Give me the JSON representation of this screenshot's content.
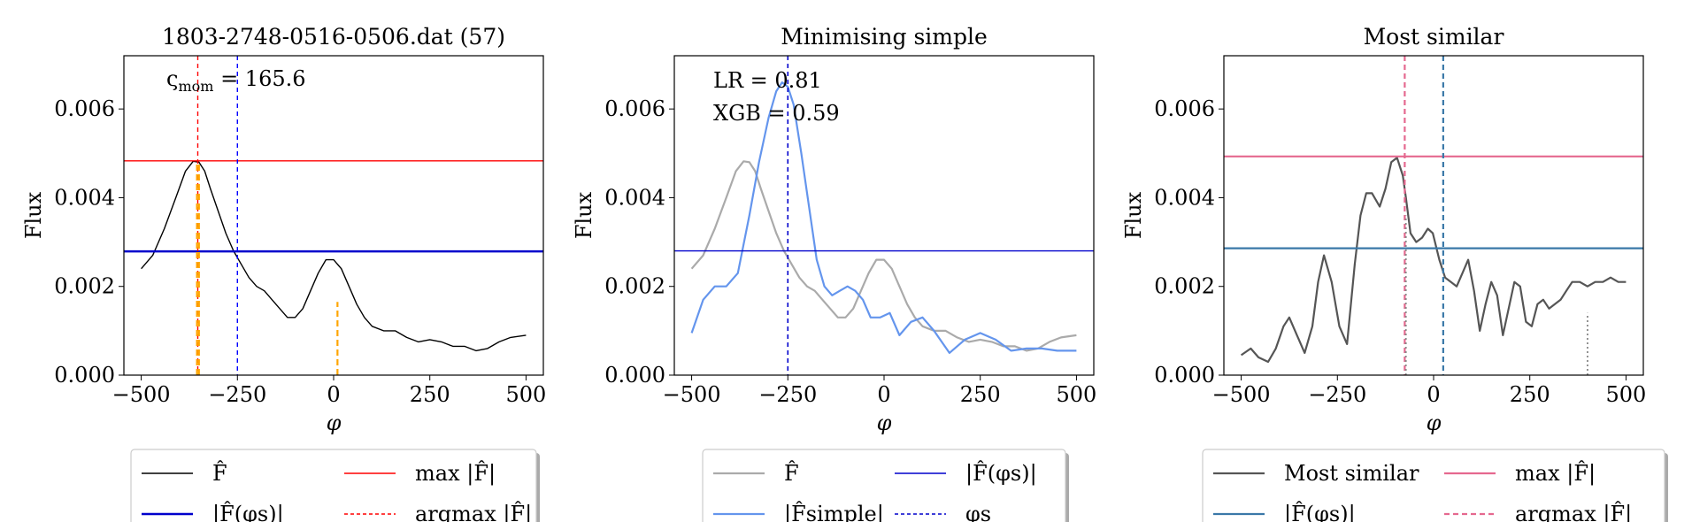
{
  "chart_data": [
    {
      "type": "line",
      "title": "1803-2748-0516-0506.dat (57)",
      "xlabel": "φ",
      "ylabel": "Flux",
      "xlim": [
        -545,
        545
      ],
      "ylim": [
        0,
        0.0072
      ],
      "xticks": [
        -500,
        -250,
        0,
        250,
        500
      ],
      "xtick_labels": [
        "−500",
        "−250",
        "0",
        "250",
        "500"
      ],
      "yticks": [
        0,
        0.002,
        0.004,
        0.006
      ],
      "ytick_labels": [
        "0.000",
        "0.002",
        "0.004",
        "0.006"
      ],
      "grid": false,
      "annotation": "ς",
      "annotation_sub": "mom",
      "annotation_value": " = 165.6",
      "series": [
        {
          "name": "F̂",
          "kind": "line",
          "color": "#000000",
          "width": 1.4,
          "x": [
            -500,
            -470,
            -440,
            -410,
            -385,
            -365,
            -350,
            -335,
            -320,
            -300,
            -280,
            -260,
            -240,
            -220,
            -200,
            -180,
            -160,
            -140,
            -120,
            -100,
            -80,
            -60,
            -40,
            -20,
            0,
            20,
            40,
            60,
            80,
            100,
            130,
            160,
            190,
            220,
            250,
            280,
            310,
            340,
            370,
            400,
            430,
            460,
            500
          ],
          "y": [
            0.0024,
            0.0027,
            0.0033,
            0.004,
            0.0046,
            0.00482,
            0.0048,
            0.0046,
            0.0042,
            0.0037,
            0.0032,
            0.0028,
            0.0025,
            0.0022,
            0.002,
            0.0019,
            0.0017,
            0.0015,
            0.0013,
            0.0013,
            0.0015,
            0.0019,
            0.0023,
            0.0026,
            0.0026,
            0.0024,
            0.002,
            0.0016,
            0.0013,
            0.0011,
            0.001,
            0.001,
            0.00085,
            0.00075,
            0.0008,
            0.00075,
            0.00065,
            0.00065,
            0.00055,
            0.0006,
            0.00075,
            0.00085,
            0.0009
          ]
        },
        {
          "name": "max |F̂|",
          "kind": "hline",
          "color": "#ff0000",
          "width": 1.4,
          "value": 0.00483
        },
        {
          "name": "|F̂(φs)|",
          "kind": "hline",
          "color": "#0000cc",
          "width": 2.4,
          "value": 0.00279
        },
        {
          "name": "argmax |F̂|",
          "kind": "vline",
          "color": "#ff0000",
          "width": 1.4,
          "dash": "5,4",
          "value": -353
        },
        {
          "name": "φs",
          "kind": "vline",
          "color": "#0000ff",
          "width": 1.4,
          "dash": "5,4",
          "value": -250
        },
        {
          "name": "",
          "kind": "stem",
          "color": "#ffa500",
          "width": 2.2,
          "dash": "7,4",
          "x": [
            -355,
            -350,
            10
          ],
          "y": [
            0.0048,
            0.0048,
            0.00165
          ]
        }
      ],
      "legend": {
        "position": "below",
        "items": [
          {
            "text": "F̂",
            "color": "#000000",
            "dash": "",
            "width": 1.4
          },
          {
            "text": "max |F̂|",
            "color": "#ff0000",
            "dash": "",
            "width": 1.4
          },
          {
            "text": "|F̂(φs)|",
            "color": "#0000cc",
            "dash": "",
            "width": 2.4
          },
          {
            "text": "argmax |F̂|",
            "color": "#ff0000",
            "dash": "4,3",
            "width": 1.4
          }
        ]
      }
    },
    {
      "type": "line",
      "title": "Minimising simple",
      "xlabel": "φ",
      "ylabel": "Flux",
      "xlim": [
        -545,
        545
      ],
      "ylim": [
        0,
        0.0072
      ],
      "xticks": [
        -500,
        -250,
        0,
        250,
        500
      ],
      "xtick_labels": [
        "−500",
        "−250",
        "0",
        "250",
        "500"
      ],
      "yticks": [
        0,
        0.002,
        0.004,
        0.006
      ],
      "ytick_labels": [
        "0.000",
        "0.002",
        "0.004",
        "0.006"
      ],
      "grid": false,
      "annotation_lines": [
        "LR = 0.81",
        "XGB = 0.59"
      ],
      "series": [
        {
          "name": "F̂",
          "kind": "line",
          "color": "#aaaaaa",
          "width": 2.2,
          "x": [
            -500,
            -470,
            -440,
            -410,
            -385,
            -365,
            -350,
            -335,
            -320,
            -300,
            -280,
            -260,
            -240,
            -220,
            -200,
            -180,
            -160,
            -140,
            -120,
            -100,
            -80,
            -60,
            -40,
            -20,
            0,
            20,
            40,
            60,
            80,
            100,
            130,
            160,
            190,
            220,
            250,
            280,
            310,
            340,
            370,
            400,
            430,
            460,
            500
          ],
          "y": [
            0.0024,
            0.0027,
            0.0033,
            0.004,
            0.0046,
            0.00482,
            0.0048,
            0.0046,
            0.0042,
            0.0037,
            0.0032,
            0.0028,
            0.0025,
            0.0022,
            0.002,
            0.0019,
            0.0017,
            0.0015,
            0.0013,
            0.0013,
            0.0015,
            0.0019,
            0.0023,
            0.0026,
            0.0026,
            0.0024,
            0.002,
            0.0016,
            0.0013,
            0.0011,
            0.001,
            0.001,
            0.00085,
            0.00075,
            0.0008,
            0.00075,
            0.00065,
            0.00065,
            0.00055,
            0.0006,
            0.00075,
            0.00085,
            0.0009
          ]
        },
        {
          "name": "|F̂simple|",
          "kind": "line",
          "color": "#6495ed",
          "width": 2.2,
          "x": [
            -500,
            -470,
            -440,
            -410,
            -380,
            -350,
            -325,
            -300,
            -280,
            -265,
            -250,
            -235,
            -215,
            -195,
            -175,
            -155,
            -135,
            -115,
            -95,
            -75,
            -55,
            -35,
            -10,
            15,
            40,
            70,
            100,
            130,
            170,
            210,
            250,
            290,
            330,
            370,
            410,
            450,
            500
          ],
          "y": [
            0.00095,
            0.0017,
            0.002,
            0.002,
            0.0023,
            0.0036,
            0.0048,
            0.0058,
            0.0064,
            0.0066,
            0.0065,
            0.0061,
            0.005,
            0.0038,
            0.0026,
            0.002,
            0.0018,
            0.0019,
            0.002,
            0.0019,
            0.0017,
            0.0013,
            0.0013,
            0.0014,
            0.0009,
            0.0012,
            0.0013,
            0.001,
            0.0005,
            0.0008,
            0.00095,
            0.0008,
            0.00055,
            0.0006,
            0.0006,
            0.00055,
            0.00055
          ]
        },
        {
          "name": "|F̂(φs)|",
          "kind": "hline",
          "color": "#0000cc",
          "width": 1.4,
          "value": 0.0028
        },
        {
          "name": "φs",
          "kind": "vline",
          "color": "#0000cc",
          "width": 1.6,
          "dash": "5,4",
          "value": -250
        }
      ],
      "legend": {
        "position": "below",
        "items": [
          {
            "text": "F̂",
            "color": "#aaaaaa",
            "dash": "",
            "width": 2.2
          },
          {
            "text": "|F̂(φs)|",
            "color": "#0000cc",
            "dash": "",
            "width": 1.4
          },
          {
            "text": "|F̂simple|",
            "color": "#6495ed",
            "dash": "",
            "width": 2.2
          },
          {
            "text": "φs",
            "color": "#0000cc",
            "dash": "4,3",
            "width": 1.4
          }
        ]
      }
    },
    {
      "type": "line",
      "title": "Most similar",
      "xlabel": "φ",
      "ylabel": "Flux",
      "xlim": [
        -545,
        545
      ],
      "ylim": [
        0,
        0.0072
      ],
      "xticks": [
        -500,
        -250,
        0,
        250,
        500
      ],
      "xtick_labels": [
        "−500",
        "−250",
        "0",
        "250",
        "500"
      ],
      "yticks": [
        0,
        0.002,
        0.004,
        0.006
      ],
      "ytick_labels": [
        "0.000",
        "0.002",
        "0.004",
        "0.006"
      ],
      "grid": false,
      "series": [
        {
          "name": "Most similar",
          "kind": "line",
          "color": "#555555",
          "width": 2.2,
          "x": [
            -500,
            -475,
            -455,
            -430,
            -410,
            -390,
            -375,
            -355,
            -335,
            -315,
            -300,
            -285,
            -265,
            -245,
            -225,
            -205,
            -190,
            -175,
            -160,
            -140,
            -125,
            -110,
            -95,
            -80,
            -72,
            -60,
            -45,
            -30,
            -15,
            -2,
            15,
            30,
            45,
            60,
            75,
            90,
            105,
            120,
            135,
            150,
            165,
            180,
            195,
            210,
            225,
            240,
            255,
            270,
            285,
            300,
            315,
            330,
            345,
            360,
            380,
            400,
            420,
            440,
            460,
            480,
            500
          ],
          "y": [
            0.00045,
            0.0006,
            0.0004,
            0.0003,
            0.0006,
            0.0011,
            0.0013,
            0.0009,
            0.0005,
            0.0011,
            0.0021,
            0.0027,
            0.0021,
            0.0011,
            0.0007,
            0.0025,
            0.0036,
            0.0041,
            0.0041,
            0.0038,
            0.0042,
            0.0048,
            0.0049,
            0.0045,
            0.004,
            0.0032,
            0.003,
            0.0031,
            0.0033,
            0.0032,
            0.0026,
            0.0022,
            0.0021,
            0.002,
            0.0023,
            0.0026,
            0.0019,
            0.001,
            0.0016,
            0.0021,
            0.0018,
            0.0009,
            0.0015,
            0.0021,
            0.002,
            0.0012,
            0.0011,
            0.0016,
            0.0017,
            0.0015,
            0.0016,
            0.0017,
            0.0019,
            0.0021,
            0.0021,
            0.002,
            0.0021,
            0.0021,
            0.0022,
            0.0021,
            0.0021
          ]
        },
        {
          "name": "max |F̂|",
          "kind": "hline",
          "color": "#e5688f",
          "width": 2.2,
          "value": 0.00493
        },
        {
          "name": "|F̂(φs)|",
          "kind": "hline",
          "color": "#3a78a8",
          "width": 2.2,
          "value": 0.00286
        },
        {
          "name": "argmax |F̂|",
          "kind": "vline",
          "color": "#e5688f",
          "width": 2.2,
          "dash": "6,4",
          "value": -75
        },
        {
          "name": "φs",
          "kind": "vline",
          "color": "#3a78a8",
          "width": 2.2,
          "dash": "6,4",
          "value": 25
        },
        {
          "name": "",
          "kind": "stem",
          "color": "#888888",
          "width": 1.8,
          "dash": "2,3",
          "x": [
            -72,
            400
          ],
          "y": [
            0.0036,
            0.0014
          ]
        }
      ],
      "legend": {
        "position": "below",
        "items": [
          {
            "text": "Most similar",
            "color": "#555555",
            "dash": "",
            "width": 2.2
          },
          {
            "text": "max |F̂|",
            "color": "#e5688f",
            "dash": "",
            "width": 2.2
          },
          {
            "text": "|F̂(φs)|",
            "color": "#3a78a8",
            "dash": "",
            "width": 2.2
          },
          {
            "text": "argmax |F̂|",
            "color": "#e5688f",
            "dash": "6,4",
            "width": 2.2
          }
        ]
      }
    }
  ]
}
